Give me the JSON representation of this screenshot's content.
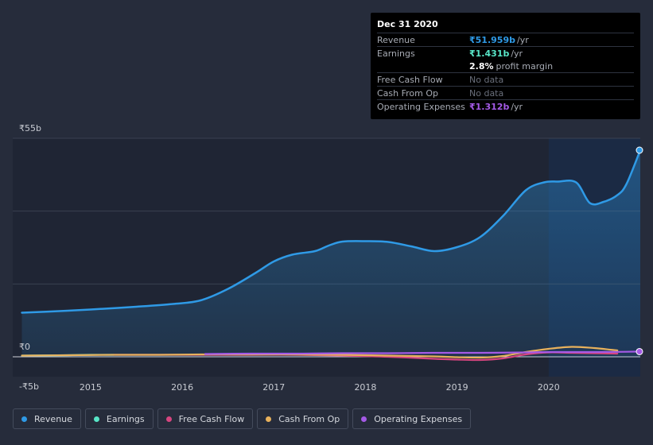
{
  "tooltip": {
    "date": "Dec 31 2020",
    "rows": {
      "revenue": {
        "label": "Revenue",
        "value": "₹51.959b",
        "unit": "/yr",
        "color": "#2f9ae6"
      },
      "earnings": {
        "label": "Earnings",
        "value": "₹1.431b",
        "unit": "/yr",
        "color": "#58e5c7"
      },
      "margin": {
        "value": "2.8%",
        "text": "profit margin"
      },
      "fcf": {
        "label": "Free Cash Flow",
        "value": "No data"
      },
      "cfo": {
        "label": "Cash From Op",
        "value": "No data"
      },
      "opex": {
        "label": "Operating Expenses",
        "value": "₹1.312b",
        "unit": "/yr",
        "color": "#a45ae6"
      }
    }
  },
  "legend": [
    {
      "label": "Revenue",
      "color": "#2f9ae6"
    },
    {
      "label": "Earnings",
      "color": "#58e5c7"
    },
    {
      "label": "Free Cash Flow",
      "color": "#d6457f"
    },
    {
      "label": "Cash From Op",
      "color": "#e8b15c"
    },
    {
      "label": "Operating Expenses",
      "color": "#a45ae6"
    }
  ],
  "chart_data": {
    "type": "line",
    "title": "",
    "xlabel": "",
    "ylabel": "",
    "xlim": [
      2014.15,
      2021.0
    ],
    "ylim": [
      -5,
      55
    ],
    "y_tick_labels": [
      {
        "value": 55,
        "label": "₹55b"
      },
      {
        "value": 0,
        "label": "₹0"
      },
      {
        "value": -5,
        "label": "-₹5b"
      }
    ],
    "x_tick_labels": [
      {
        "value": 2015,
        "label": "2015"
      },
      {
        "value": 2016,
        "label": "2016"
      },
      {
        "value": 2017,
        "label": "2017"
      },
      {
        "value": 2018,
        "label": "2018"
      },
      {
        "value": 2019,
        "label": "2019"
      },
      {
        "value": 2020,
        "label": "2020"
      }
    ],
    "highlight_from": 2020.0,
    "series": [
      {
        "name": "Revenue",
        "color": "#2f9ae6",
        "area": true,
        "x": [
          2014.25,
          2014.75,
          2015.0,
          2015.5,
          2015.9,
          2016.2,
          2016.5,
          2016.8,
          2017.0,
          2017.2,
          2017.45,
          2017.6,
          2017.75,
          2018.0,
          2018.25,
          2018.5,
          2018.75,
          2019.0,
          2019.25,
          2019.5,
          2019.75,
          2019.95,
          2020.1,
          2020.3,
          2020.45,
          2020.6,
          2020.75,
          2020.85,
          2021.0
        ],
        "y": [
          11.1,
          11.6,
          11.9,
          12.6,
          13.3,
          14.2,
          17.1,
          21.1,
          24.0,
          25.7,
          26.6,
          28.0,
          29.0,
          29.1,
          28.9,
          27.8,
          26.6,
          27.6,
          30.1,
          35.4,
          41.9,
          43.9,
          44.1,
          43.9,
          38.7,
          39.0,
          40.7,
          43.5,
          52.0
        ]
      },
      {
        "name": "Earnings",
        "color": "#58e5c7",
        "area": false,
        "x": [
          2014.25,
          2014.75,
          2015.0,
          2015.25
        ],
        "y": [
          0.3,
          0.4,
          0.5,
          0.5
        ]
      },
      {
        "name": "Free Cash Flow",
        "color": "#d6457f",
        "area": false,
        "x": [
          2015.25,
          2015.75,
          2016.25,
          2016.75,
          2017.25,
          2017.75,
          2018.25,
          2018.75,
          2019.0,
          2019.25,
          2019.5,
          2019.75,
          2020.0,
          2020.25,
          2020.5,
          2020.75
        ],
        "y": [
          0.5,
          0.5,
          0.5,
          0.5,
          0.5,
          0.3,
          0.0,
          -0.5,
          -0.7,
          -0.8,
          -0.4,
          0.6,
          1.1,
          1.0,
          0.9,
          0.8
        ]
      },
      {
        "name": "Cash From Op",
        "color": "#e8b15c",
        "area": false,
        "x": [
          2014.25,
          2014.75,
          2015.25,
          2015.75,
          2016.25,
          2016.75,
          2017.25,
          2017.75,
          2018.25,
          2018.75,
          2019.0,
          2019.25,
          2019.5,
          2019.75,
          2020.0,
          2020.25,
          2020.5,
          2020.75
        ],
        "y": [
          0.3,
          0.4,
          0.5,
          0.5,
          0.6,
          0.6,
          0.6,
          0.5,
          0.3,
          0.1,
          -0.1,
          -0.2,
          0.2,
          1.2,
          2.0,
          2.5,
          2.2,
          1.6
        ]
      },
      {
        "name": "Operating Expenses",
        "color": "#a45ae6",
        "area": false,
        "x": [
          2016.25,
          2016.75,
          2017.25,
          2017.75,
          2018.25,
          2018.75,
          2019.25,
          2019.75,
          2020.0,
          2020.25,
          2020.5,
          2020.75,
          2021.0
        ],
        "y": [
          0.7,
          0.8,
          0.8,
          0.9,
          0.9,
          1.0,
          1.0,
          1.1,
          1.2,
          1.2,
          1.2,
          1.25,
          1.31
        ]
      }
    ]
  }
}
